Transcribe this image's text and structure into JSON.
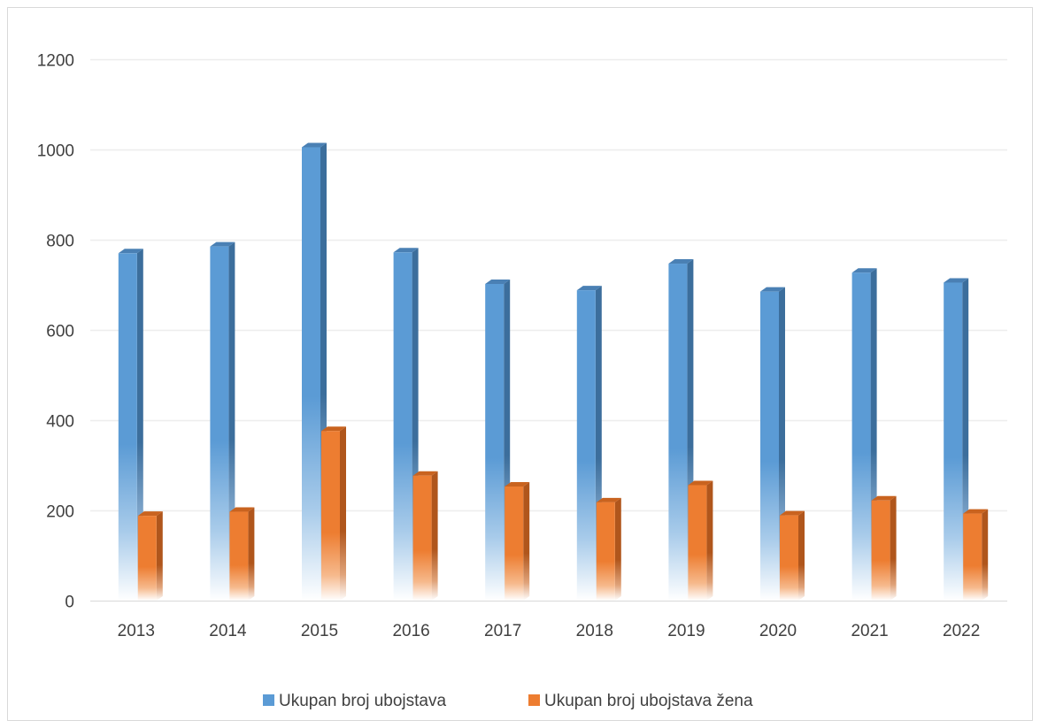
{
  "chart_data": {
    "type": "bar",
    "categories": [
      "2013",
      "2014",
      "2015",
      "2016",
      "2017",
      "2018",
      "2019",
      "2020",
      "2021",
      "2022"
    ],
    "series": [
      {
        "name": "Ukupan broj ubojstava",
        "color": "#5B9BD5",
        "values": [
          770,
          785,
          1005,
          772,
          702,
          688,
          747,
          685,
          727,
          705
        ]
      },
      {
        "name": "Ukupan broj ubojstava žena",
        "color": "#ED7D31",
        "values": [
          188,
          197,
          376,
          277,
          253,
          218,
          256,
          189,
          222,
          193
        ]
      }
    ],
    "title": "",
    "xlabel": "",
    "ylabel": "",
    "ylim": [
      0,
      1200
    ],
    "yticks": [
      0,
      200,
      400,
      600,
      800,
      1000,
      1200
    ],
    "grid": true,
    "legend": "bottom"
  }
}
